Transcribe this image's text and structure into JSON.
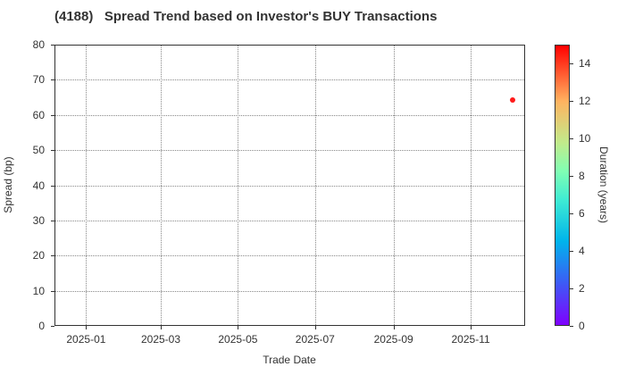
{
  "chart_data": {
    "type": "scatter",
    "title": "(4188)   Spread Trend based on Investor's BUY Transactions",
    "xlabel": "Trade Date",
    "ylabel": "Spread (bp)",
    "x_ticks": [
      "2025-01",
      "2025-03",
      "2025-05",
      "2025-07",
      "2025-09",
      "2025-11"
    ],
    "y_ticks": [
      0,
      10,
      20,
      30,
      40,
      50,
      60,
      70,
      80
    ],
    "ylim": [
      0,
      80
    ],
    "xlim": [
      "2024-12-07",
      "2025-12-14"
    ],
    "grid": true,
    "points": [
      {
        "x": "2025-12-04",
        "y": 64.2,
        "duration": 15.0,
        "color": "#ff1a1a"
      }
    ],
    "colorbar": {
      "label": "Duration (years)",
      "range": [
        0,
        15
      ],
      "ticks": [
        0,
        2,
        4,
        6,
        8,
        10,
        12,
        14
      ],
      "colormap": "rainbow"
    }
  }
}
